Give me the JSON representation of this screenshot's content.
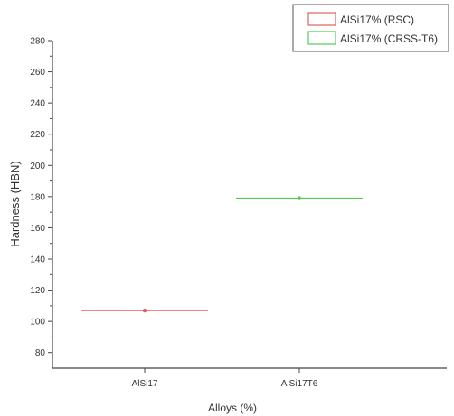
{
  "chart_data": {
    "type": "scatter",
    "title": "",
    "xlabel": "Alloys (%)",
    "ylabel": "Hardness (HBN)",
    "categories": [
      "AlSi17",
      "AlSi17T6"
    ],
    "ylim": [
      70,
      280
    ],
    "yticks": [
      80,
      100,
      120,
      140,
      160,
      180,
      200,
      220,
      240,
      260,
      280
    ],
    "grid": false,
    "legend_position": "top-right",
    "series": [
      {
        "name": "AlSi17% (RSC)",
        "category": "AlSi17",
        "value": 107,
        "color": "#e06060"
      },
      {
        "name": "AlSi17% (CRSS-T6)",
        "category": "AlSi17T6",
        "value": 179,
        "color": "#55cc55"
      }
    ]
  }
}
